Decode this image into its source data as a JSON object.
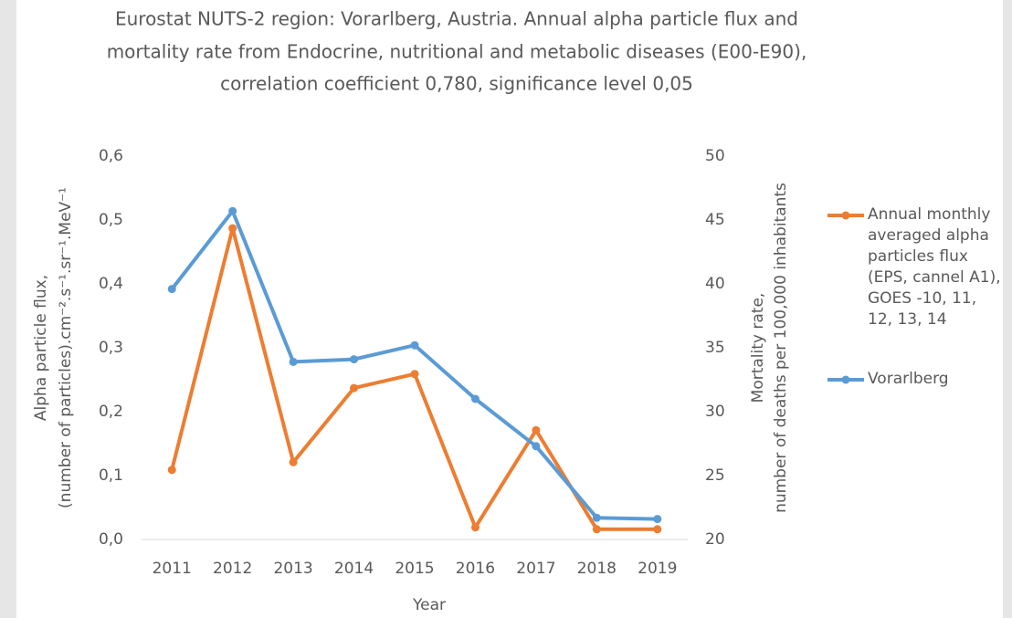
{
  "chart_data": {
    "type": "line",
    "title": [
      "Eurostat NUTS-2 region: Vorarlberg, Austria. Annual alpha particle flux and",
      "mortality rate from Endocrine, nutritional and metabolic diseases (E00-E90),",
      "correlation coefficient 0,780, significance level 0,05"
    ],
    "x_label": "Year",
    "y_label": [
      "Alpha particle flux,",
      "(number of particles).cm⁻².s⁻¹.sr⁻¹.MeV⁻¹"
    ],
    "y2_label": [
      "Mortality rate,",
      "number of deaths per 100,000 inhabitants"
    ],
    "categories": [
      "2011",
      "2012",
      "2013",
      "2014",
      "2015",
      "2016",
      "2017",
      "2018",
      "2019"
    ],
    "series": [
      {
        "name": "Annual monthly averaged alpha particles flux (EPS, cannel A1), GOES -10, 11, 12, 13, 14",
        "color": "#ed7d31",
        "axis": "y",
        "values": [
          0.109,
          0.487,
          0.121,
          0.237,
          0.259,
          0.019,
          0.171,
          0.016,
          0.016
        ]
      },
      {
        "name": "Vorarlberg",
        "color": "#5b9bd5",
        "axis": "y2",
        "values": [
          39.6,
          45.7,
          33.9,
          34.1,
          35.2,
          31.0,
          27.3,
          21.7,
          21.6
        ]
      }
    ],
    "ylim": [
      0,
      0.6
    ],
    "yticks": [
      {
        "value": 0,
        "label": "0,0"
      },
      {
        "value": 0.1,
        "label": "0,1"
      },
      {
        "value": 0.2,
        "label": "0,2"
      },
      {
        "value": 0.3,
        "label": "0,3"
      },
      {
        "value": 0.4,
        "label": "0,4"
      },
      {
        "value": 0.5,
        "label": "0,5"
      },
      {
        "value": 0.6,
        "label": "0,6"
      }
    ],
    "y2lim": [
      20,
      50
    ],
    "y2ticks": [
      20,
      25,
      30,
      35,
      40,
      45,
      50
    ],
    "grid": false,
    "legend": "right"
  }
}
